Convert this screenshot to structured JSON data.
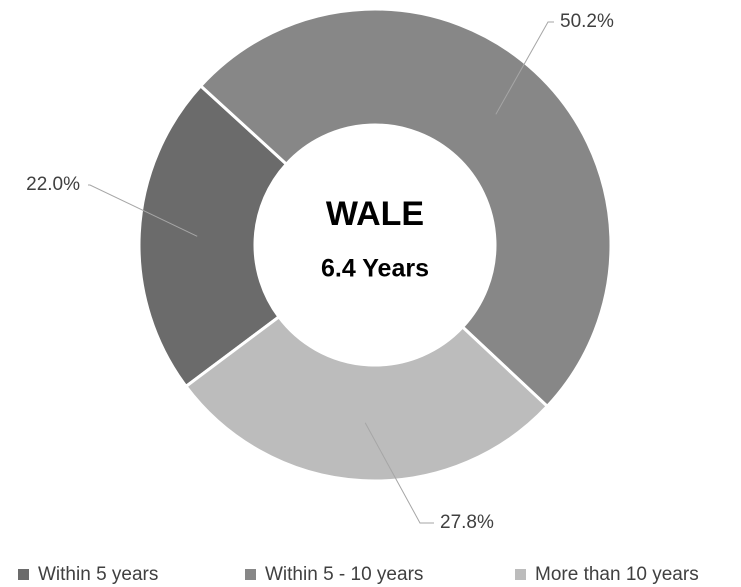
{
  "chart_data": {
    "type": "donut",
    "categories": [
      "Within 5 years",
      "Within 5 - 10 years",
      "More than 10 years"
    ],
    "values": [
      22.0,
      50.2,
      27.8
    ],
    "value_labels": [
      "22.0%",
      "50.2%",
      "27.8%"
    ],
    "colors": [
      "#6b6b6b",
      "#878787",
      "#bcbcbc"
    ],
    "center_text": [
      "WALE",
      "6.4 Years"
    ],
    "legend": "bottom"
  }
}
